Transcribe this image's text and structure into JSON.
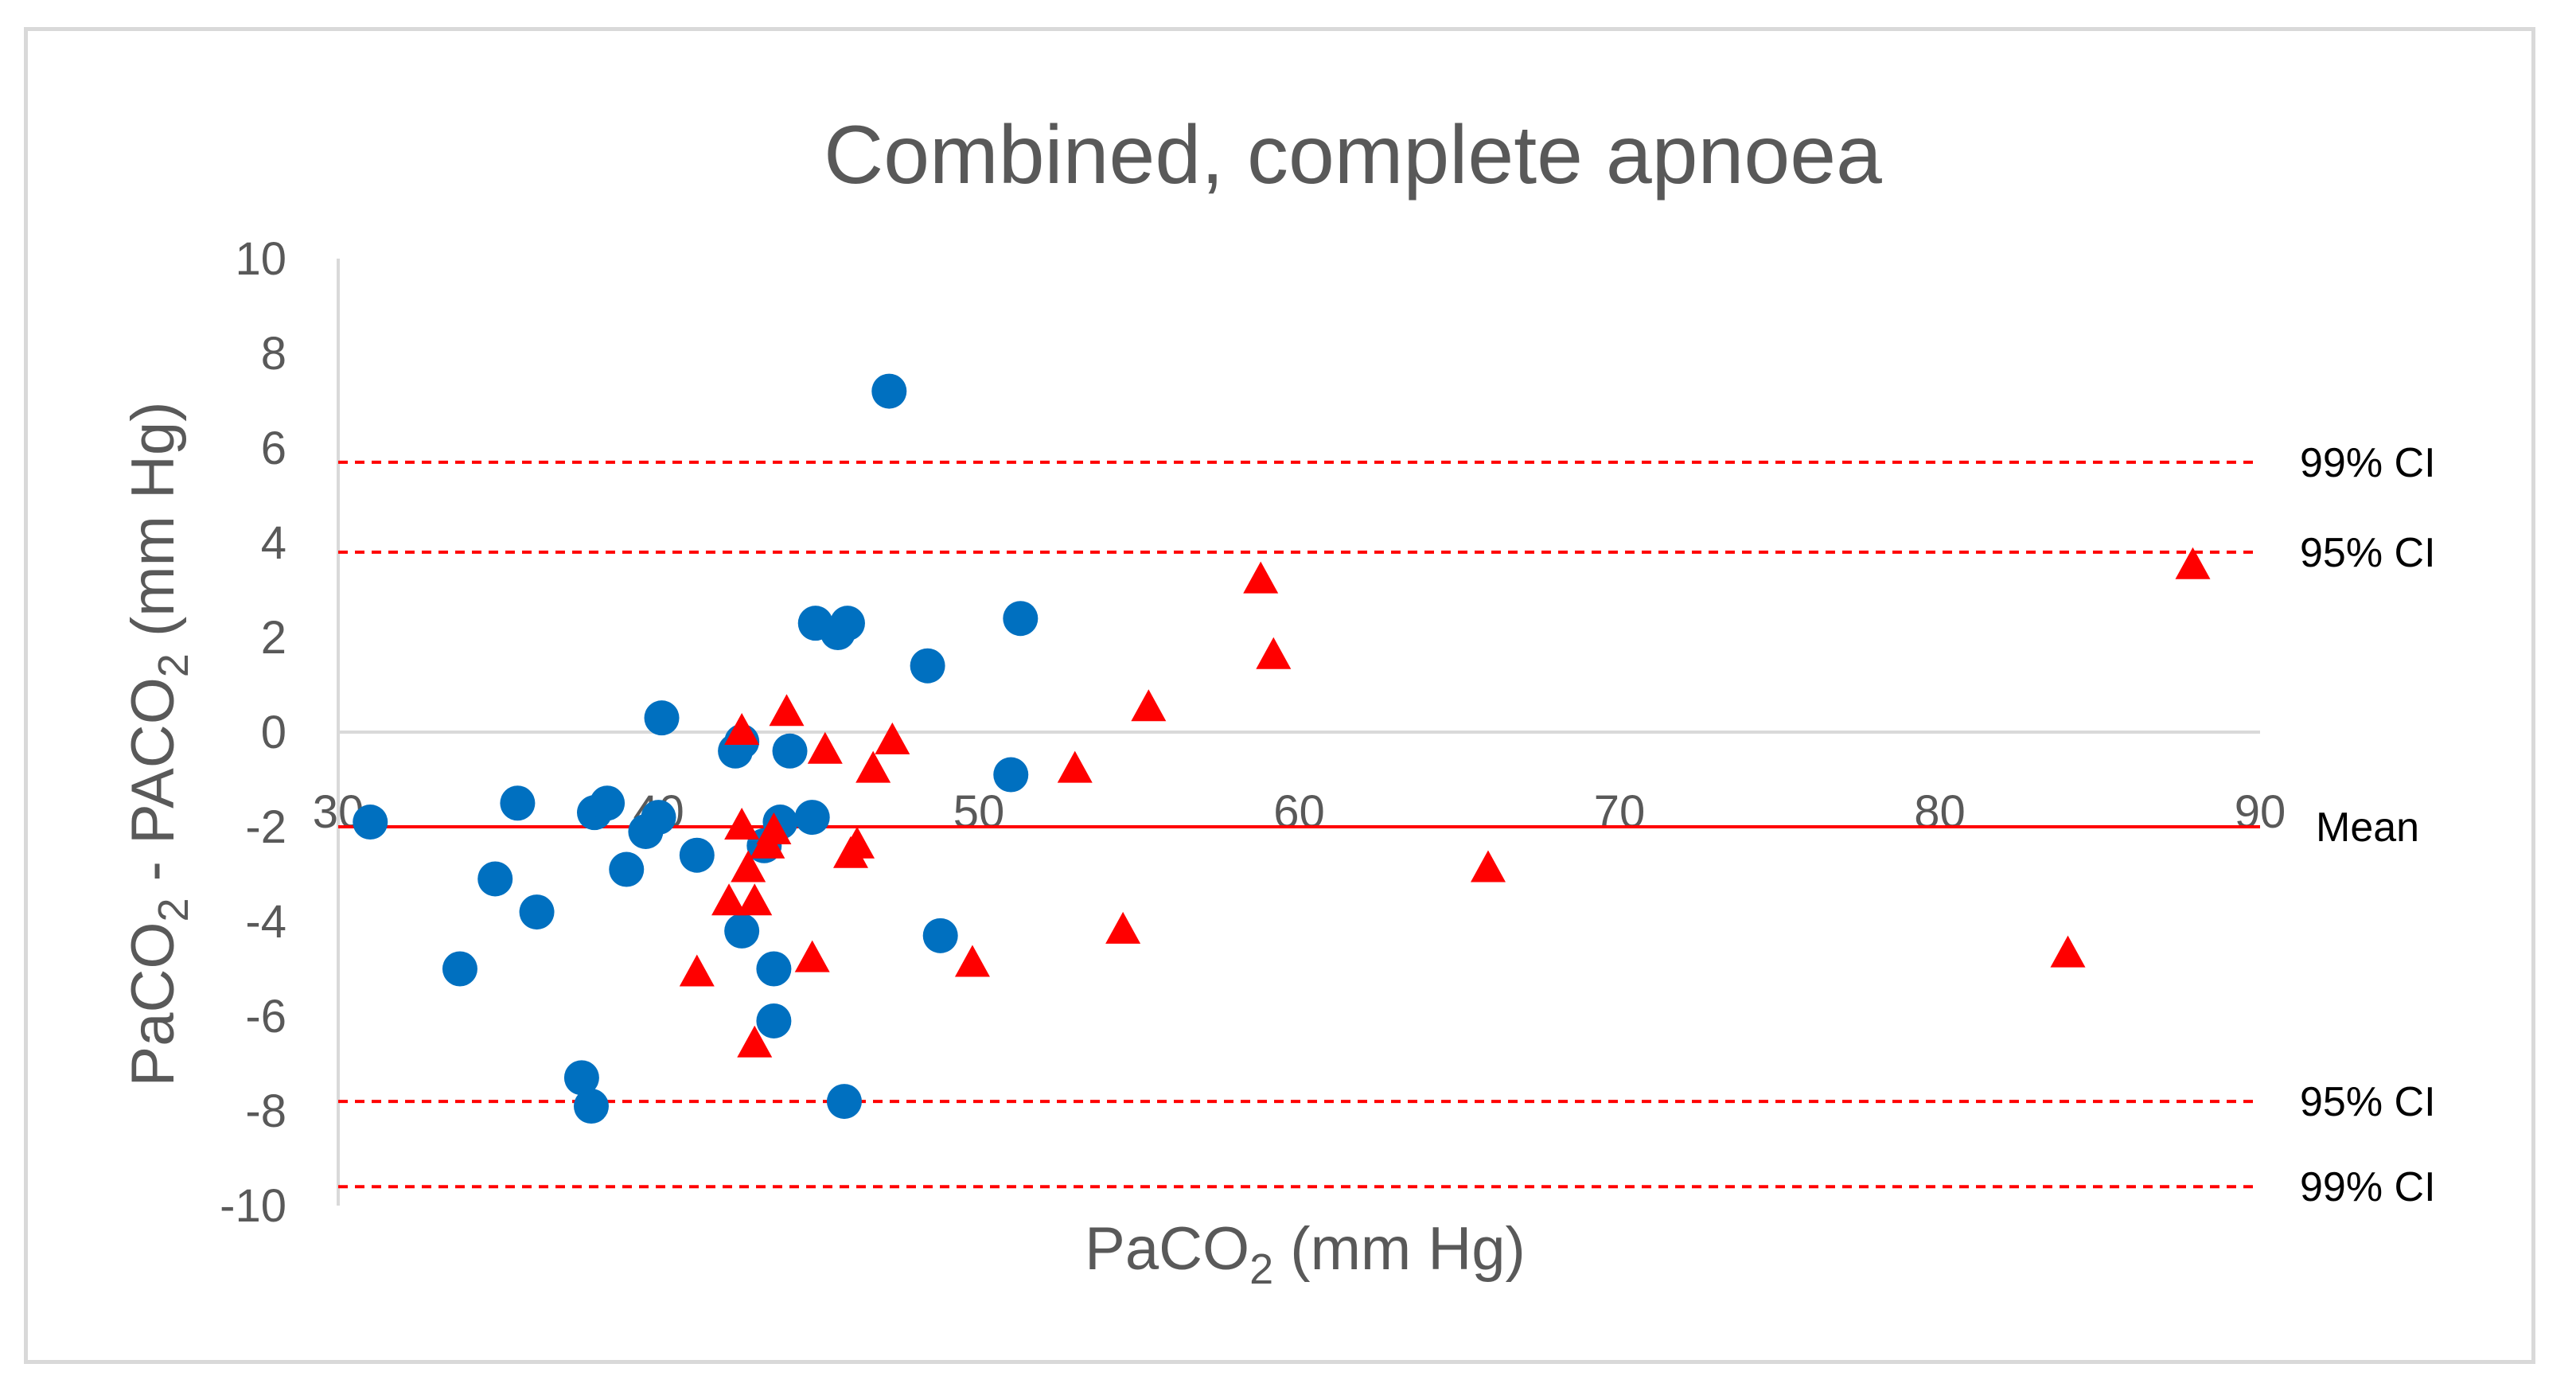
{
  "chart_data": {
    "type": "scatter",
    "title": "Combined, complete apnoea",
    "xlabel": {
      "main": "PaCO",
      "sub": "2",
      "unit": " (mm  Hg)"
    },
    "ylabel": {
      "p1": "PaCO",
      "s1": "2",
      "p2": " - PACO",
      "s2": "2",
      "p3": " (mm Hg)"
    },
    "xlim": [
      30,
      90
    ],
    "ylim": [
      -10,
      10
    ],
    "x_ticks": [
      30,
      40,
      50,
      60,
      70,
      80,
      90
    ],
    "y_ticks": [
      10,
      8,
      6,
      4,
      2,
      0,
      -2,
      -4,
      -6,
      -8,
      -10
    ],
    "x_axis_at": 0,
    "grid": false,
    "colors": {
      "circle": "#0070c0",
      "triangle": "#ff0000",
      "line": "#ff0000",
      "axis": "#d9d9d9"
    },
    "reference_lines": [
      {
        "name": "99-upper",
        "y": 5.7,
        "label": "99% CI",
        "style": "dashed"
      },
      {
        "name": "95-upper",
        "y": 3.8,
        "label": "95% CI",
        "style": "dashed"
      },
      {
        "name": "mean",
        "y": -2.0,
        "label": "Mean",
        "style": "solid"
      },
      {
        "name": "95-lower",
        "y": -7.8,
        "label": "95% CI",
        "style": "dashed"
      },
      {
        "name": "99-lower",
        "y": -9.6,
        "label": "99% CI",
        "style": "dashed"
      }
    ],
    "series": [
      {
        "name": "circles",
        "marker": "circle",
        "points": [
          [
            31.0,
            -1.9
          ],
          [
            33.8,
            -5.0
          ],
          [
            34.9,
            -3.1
          ],
          [
            35.6,
            -1.5
          ],
          [
            36.2,
            -3.8
          ],
          [
            37.6,
            -7.3
          ],
          [
            37.9,
            -7.9
          ],
          [
            38.0,
            -1.7
          ],
          [
            38.4,
            -1.5
          ],
          [
            39.0,
            -2.9
          ],
          [
            39.6,
            -2.1
          ],
          [
            40.0,
            -1.8
          ],
          [
            40.1,
            0.3
          ],
          [
            41.2,
            -2.6
          ],
          [
            42.4,
            -0.4
          ],
          [
            42.6,
            -0.2
          ],
          [
            42.6,
            -4.2
          ],
          [
            43.3,
            -2.4
          ],
          [
            43.6,
            -5.0
          ],
          [
            43.6,
            -6.1
          ],
          [
            43.8,
            -1.9
          ],
          [
            44.1,
            -0.4
          ],
          [
            44.8,
            -1.8
          ],
          [
            44.9,
            2.3
          ],
          [
            45.6,
            2.1
          ],
          [
            45.9,
            2.3
          ],
          [
            45.8,
            -7.8
          ],
          [
            47.2,
            7.2
          ],
          [
            48.4,
            1.4
          ],
          [
            48.8,
            -4.3
          ],
          [
            51.0,
            -0.9
          ],
          [
            51.3,
            2.4
          ]
        ]
      },
      {
        "name": "triangles",
        "marker": "triangle",
        "points": [
          [
            41.2,
            -5.1
          ],
          [
            42.2,
            -3.6
          ],
          [
            42.6,
            0.0
          ],
          [
            42.6,
            -2.0
          ],
          [
            42.8,
            -2.9
          ],
          [
            43.0,
            -3.6
          ],
          [
            43.0,
            -6.6
          ],
          [
            43.4,
            -2.4
          ],
          [
            43.6,
            -2.1
          ],
          [
            44.0,
            0.4
          ],
          [
            44.8,
            -4.8
          ],
          [
            45.2,
            -0.4
          ],
          [
            46.0,
            -2.6
          ],
          [
            46.2,
            -2.4
          ],
          [
            46.7,
            -0.8
          ],
          [
            47.3,
            -0.2
          ],
          [
            49.8,
            -4.9
          ],
          [
            53.0,
            -0.8
          ],
          [
            54.5,
            -4.2
          ],
          [
            55.3,
            0.5
          ],
          [
            58.8,
            3.2
          ],
          [
            59.2,
            1.6
          ],
          [
            65.9,
            -2.9
          ],
          [
            84.0,
            -4.7
          ],
          [
            87.9,
            3.5
          ]
        ]
      }
    ]
  }
}
